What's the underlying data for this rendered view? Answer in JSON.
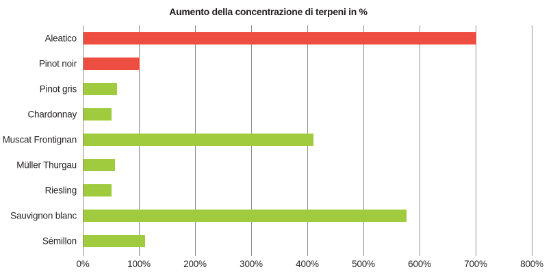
{
  "chart": {
    "title": "Aumento della concentrazione di terpeni in %"
  },
  "chart_data": {
    "type": "bar",
    "orientation": "horizontal",
    "title": "Aumento della concentrazione di terpeni in %",
    "categories": [
      "Aleatico",
      "Pinot noir",
      "Pinot gris",
      "Chardonnay",
      "Muscat Frontignan",
      "Müller Thurgau",
      "Riesling",
      "Sauvignon blanc",
      "Sémillon"
    ],
    "values": [
      700,
      100,
      60,
      50,
      410,
      56,
      50,
      575,
      110
    ],
    "bar_colors": [
      "#ee4d41",
      "#ee4d41",
      "#a0cb3e",
      "#a0cb3e",
      "#a0cb3e",
      "#a0cb3e",
      "#a0cb3e",
      "#a0cb3e",
      "#a0cb3e"
    ],
    "xlabel": "",
    "ylabel": "",
    "xlim": [
      0,
      800
    ],
    "x_tick_step": 100,
    "x_tick_labels": [
      "0%",
      "100%",
      "200%",
      "300%",
      "400%",
      "500%",
      "600%",
      "700%",
      "800%"
    ],
    "grid": "vertical",
    "legend": false,
    "colors": {
      "red_series": "#ee4d41",
      "green_series": "#a0cb3e",
      "gridline": "#8c8c8c",
      "text": "#231f20",
      "background": "#ffffff"
    }
  }
}
